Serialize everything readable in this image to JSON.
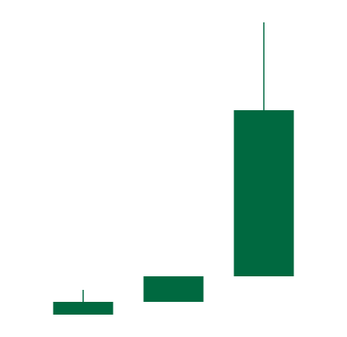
{
  "chart_data": {
    "type": "candlestick",
    "title": "",
    "xlabel": "",
    "ylabel": "",
    "axes_visible": false,
    "grid": false,
    "legend": "none",
    "up_color": "#006940",
    "ylim": [
      0,
      422
    ],
    "candles": [
      {
        "open": 28,
        "close": 44,
        "high": 59,
        "low": 28
      },
      {
        "open": 44,
        "close": 76,
        "high": 76,
        "low": 44
      },
      {
        "open": 76,
        "close": 284,
        "high": 394,
        "low": 76
      }
    ]
  }
}
